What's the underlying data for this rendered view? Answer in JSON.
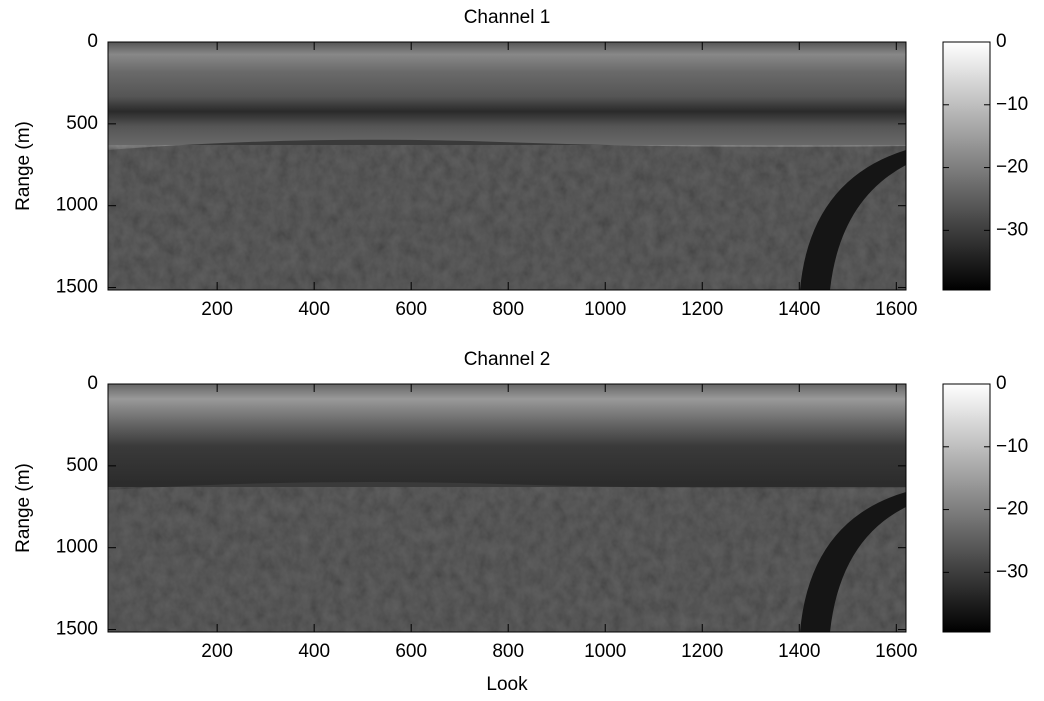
{
  "chart_data": [
    {
      "type": "heatmap",
      "title": "Channel 1",
      "ylabel": "Range (m)",
      "xlim": [
        -25,
        1620
      ],
      "xticks": [
        200,
        400,
        600,
        800,
        1000,
        1200,
        1400,
        1600
      ],
      "ylim": [
        0,
        1515
      ],
      "yticks": [
        0,
        500,
        1000,
        1500
      ],
      "y_reversed": true,
      "colormap": "gray",
      "clim": [
        -39.5,
        0
      ],
      "cticks": [
        0,
        {
          "value": -10,
          "label": "−10"
        },
        {
          "value": -20,
          "label": "−20"
        },
        {
          "value": -30,
          "label": "−30"
        }
      ]
    },
    {
      "type": "heatmap",
      "title": "Channel 2",
      "ylabel": "Range (m)",
      "xlabel": "Look",
      "xlim": [
        -25,
        1620
      ],
      "xticks": [
        200,
        400,
        600,
        800,
        1000,
        1200,
        1400,
        1600
      ],
      "ylim": [
        0,
        1515
      ],
      "yticks": [
        0,
        500,
        1000,
        1500
      ],
      "y_reversed": true,
      "colormap": "gray",
      "clim": [
        -39.5,
        0
      ],
      "cticks": [
        0,
        {
          "value": -10,
          "label": "−10"
        },
        {
          "value": -20,
          "label": "−20"
        },
        {
          "value": -30,
          "label": "−30"
        }
      ]
    }
  ]
}
